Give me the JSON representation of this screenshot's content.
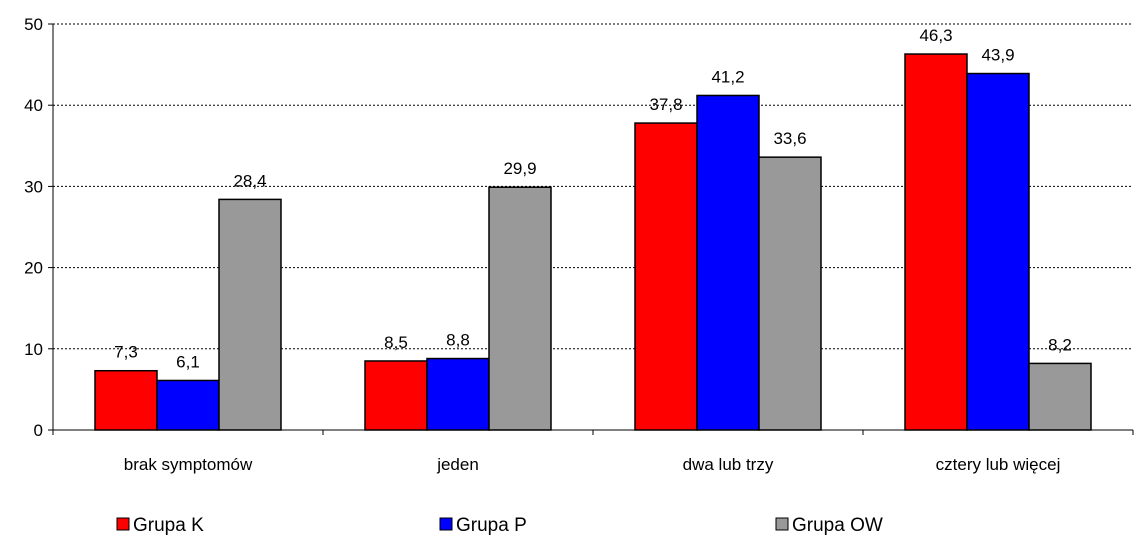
{
  "chart_data": {
    "type": "bar",
    "title": "",
    "xlabel": "",
    "ylabel": "",
    "ylim": [
      0,
      50
    ],
    "yticks": [
      0,
      10,
      20,
      30,
      40,
      50
    ],
    "grid": true,
    "legend_position": "bottom",
    "categories": [
      "brak symptomów",
      "jeden",
      "dwa lub trzy",
      "cztery lub więcej"
    ],
    "series": [
      {
        "name": "Grupa K",
        "color": "#ff0000",
        "values": [
          7.3,
          8.5,
          37.8,
          46.3
        ],
        "labels": [
          "7,3",
          "8,5",
          "37,8",
          "46,3"
        ]
      },
      {
        "name": "Grupa P",
        "color": "#0000ff",
        "values": [
          6.1,
          8.8,
          41.2,
          43.9
        ],
        "labels": [
          "6,1",
          "8,8",
          "41,2",
          "43,9"
        ]
      },
      {
        "name": "Grupa OW",
        "color": "#999999",
        "values": [
          28.4,
          29.9,
          33.6,
          8.2
        ],
        "labels": [
          "28,4",
          "29,9",
          "33,6",
          "8,2"
        ]
      }
    ]
  }
}
